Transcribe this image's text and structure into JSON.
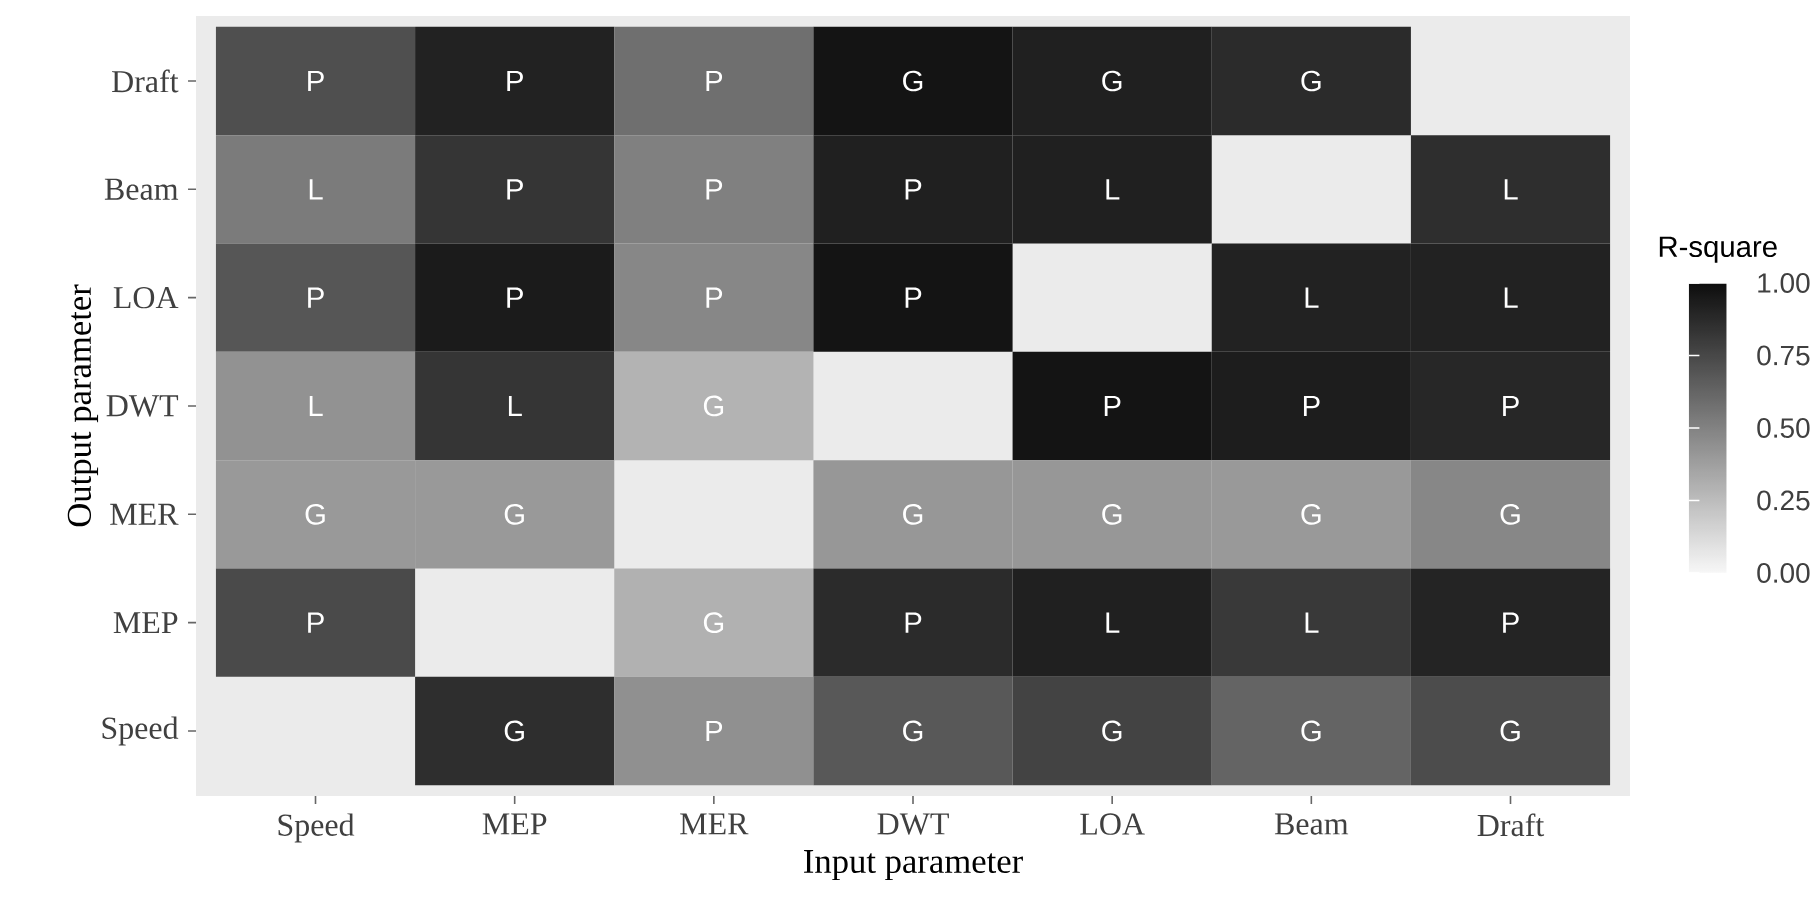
{
  "chart_data": {
    "type": "heatmap",
    "xlabel": "Input parameter",
    "ylabel": "Output parameter",
    "clabel": "R-square",
    "categories": [
      "Speed",
      "MEP",
      "MER",
      "DWT",
      "LOA",
      "Beam",
      "Draft"
    ],
    "y_categories": [
      "Draft",
      "Beam",
      "LOA",
      "DWT",
      "MER",
      "MEP",
      "Speed"
    ],
    "cells": [
      [
        0.72,
        0.91,
        0.58,
        0.97,
        0.92,
        0.87,
        null
      ],
      [
        0.53,
        0.83,
        0.51,
        0.92,
        0.92,
        null,
        0.86
      ],
      [
        0.69,
        0.94,
        0.48,
        0.97,
        null,
        0.91,
        0.91
      ],
      [
        0.43,
        0.83,
        0.29,
        null,
        0.97,
        0.93,
        0.89
      ],
      [
        0.4,
        0.4,
        null,
        0.41,
        0.41,
        0.4,
        0.48
      ],
      [
        0.74,
        null,
        0.3,
        0.87,
        0.92,
        0.81,
        0.9
      ],
      [
        null,
        0.86,
        0.44,
        0.68,
        0.77,
        0.63,
        0.73
      ]
    ],
    "cell_labels": [
      [
        "P",
        "P",
        "P",
        "G",
        "G",
        "G",
        null
      ],
      [
        "L",
        "P",
        "P",
        "P",
        "L",
        null,
        "L"
      ],
      [
        "P",
        "P",
        "P",
        "P",
        null,
        "L",
        "L"
      ],
      [
        "L",
        "L",
        "G",
        null,
        "P",
        "P",
        "P"
      ],
      [
        "G",
        "G",
        null,
        "G",
        "G",
        "G",
        "G"
      ],
      [
        "P",
        null,
        "G",
        "P",
        "L",
        "L",
        "P"
      ],
      [
        null,
        "G",
        "P",
        "G",
        "G",
        "G",
        "G"
      ]
    ],
    "clim": [
      0,
      1
    ],
    "cticks": [
      {
        "value": 0,
        "label": "0.00"
      },
      {
        "value": 0.25,
        "label": "0.25"
      },
      {
        "value": 0.5,
        "label": "0.50"
      },
      {
        "value": 0.75,
        "label": "0.75"
      },
      {
        "value": 1,
        "label": "1.00"
      }
    ]
  }
}
